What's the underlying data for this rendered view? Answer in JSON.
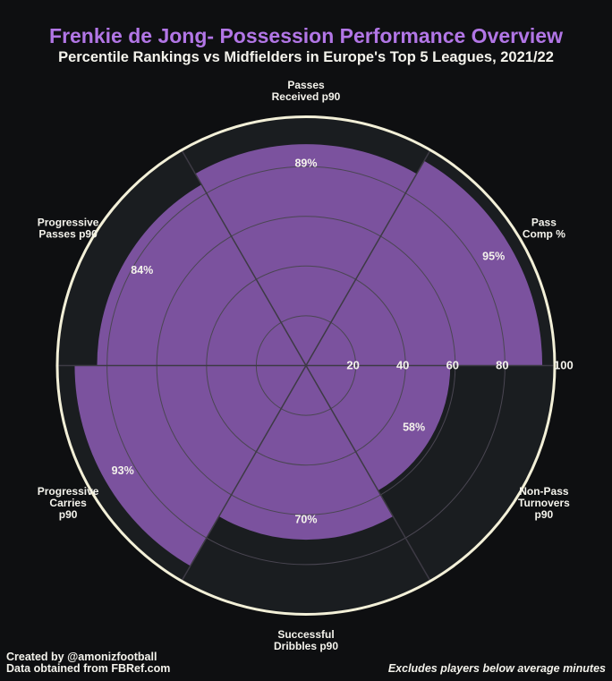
{
  "title": "Frenkie de Jong- Possession Performance Overview",
  "subtitle": "Percentile Rankings vs Midfielders in Europe's Top 5 Leagues, 2021/22",
  "footer": {
    "credit_line1": "Created by @amonizfootball",
    "credit_line2": "Data obtained from FBRef.com",
    "note": "Excludes players below average minutes"
  },
  "colors": {
    "background": "#0e0f11",
    "slice_background": "#1a1d20",
    "bar_fill": "#7b529e",
    "outer_ring": "#f3f0d8",
    "grid": "#4a4652",
    "title": "#b276e6",
    "text": "#f4f3ec"
  },
  "chart_data": {
    "type": "pie",
    "subtype": "radial-percentile-bars",
    "title": "Frenkie de Jong- Possession Performance Overview",
    "subtitle": "Percentile Rankings vs Midfielders in Europe's Top 5 Leagues, 2021/22",
    "range": [
      0,
      100
    ],
    "ticks": [
      20,
      40,
      60,
      80,
      100
    ],
    "grid": true,
    "categories": [
      [
        "Pass",
        "Comp %"
      ],
      [
        "Passes",
        "Received p90"
      ],
      [
        "Progressive",
        "Passes p90"
      ],
      [
        "Progressive",
        "Carries",
        "p90"
      ],
      [
        "Successful",
        "Dribbles p90"
      ],
      [
        "Non-Pass",
        "Turnovers",
        "p90"
      ]
    ],
    "values": [
      95,
      89,
      84,
      93,
      70,
      58
    ],
    "value_labels": [
      "95%",
      "89%",
      "84%",
      "93%",
      "70%",
      "58%"
    ]
  }
}
